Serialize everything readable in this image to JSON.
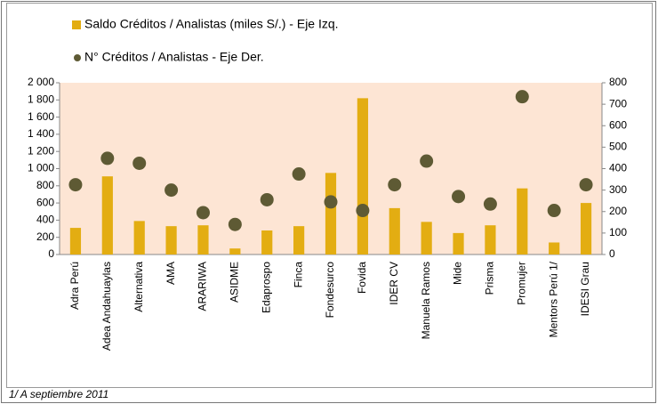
{
  "chart_data": {
    "type": "bar_scatter",
    "categories": [
      "Adra Perú",
      "Adea Andahuaylas",
      "Alternativa",
      "AMA",
      "ARARIWA",
      "ASIDME",
      "Edaprospo",
      "Finca",
      "Fondesurco",
      "Fovida",
      "IDER CV",
      "Manuela Ramos",
      "Mide",
      "Prisma",
      "Promujer",
      "Mentors Perú 1/",
      "IDESI Grau"
    ],
    "series": [
      {
        "name": "Saldo Créditos / Analistas (miles S/.) - Eje Izq.",
        "color": "#e3ad12",
        "kind": "bar",
        "values": [
          310,
          910,
          390,
          330,
          340,
          70,
          280,
          330,
          950,
          1820,
          540,
          380,
          250,
          340,
          770,
          140,
          600
        ]
      },
      {
        "name": "N° Créditos / Analistas - Eje Der.",
        "color": "#5e5a34",
        "kind": "dot",
        "axis": "y2",
        "values": [
          325,
          448,
          425,
          300,
          195,
          140,
          255,
          375,
          245,
          205,
          325,
          435,
          270,
          235,
          735,
          205,
          325
        ]
      }
    ],
    "ylim": [
      0,
      2000
    ],
    "yticks": [
      0,
      200,
      400,
      600,
      800,
      {
        "value": 1000,
        "label": "1 000"
      },
      {
        "value": 1200,
        "label": "1 200"
      },
      {
        "value": 1400,
        "label": "1 400"
      },
      {
        "value": 1600,
        "label": "1 600"
      },
      {
        "value": 1800,
        "label": "1 800"
      },
      {
        "value": 2000,
        "label": "2 000"
      }
    ],
    "y2lim": [
      0,
      800
    ],
    "y2ticks": [
      0,
      100,
      200,
      300,
      400,
      500,
      600,
      700,
      800
    ],
    "plot_background": "#fde5d4",
    "footnote": "1/ A septiembre 2011"
  }
}
